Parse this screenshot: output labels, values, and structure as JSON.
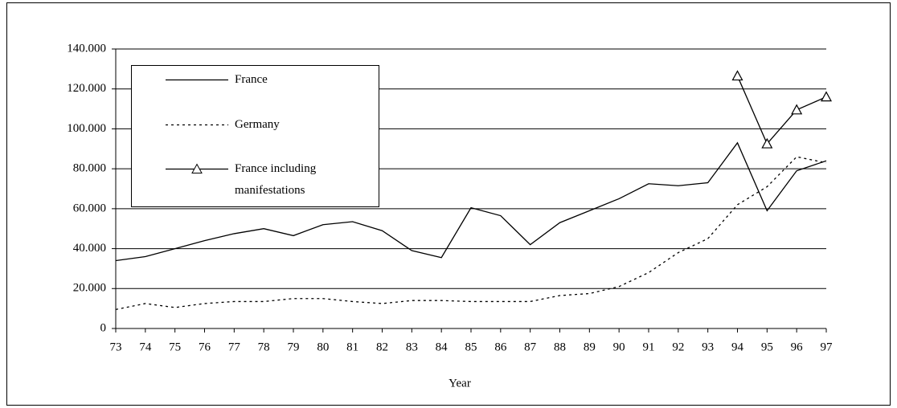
{
  "chart_data": {
    "type": "line",
    "x_label": "Year",
    "categories": [
      "73",
      "74",
      "75",
      "76",
      "77",
      "78",
      "79",
      "80",
      "81",
      "82",
      "83",
      "84",
      "85",
      "86",
      "87",
      "88",
      "89",
      "90",
      "91",
      "92",
      "93",
      "94",
      "95",
      "96",
      "97"
    ],
    "series": [
      {
        "name": "France",
        "color": "#000000",
        "style": "solid",
        "values": [
          34000,
          36000,
          40000,
          44000,
          47500,
          50000,
          46500,
          52000,
          53500,
          49000,
          39000,
          35500,
          60500,
          56500,
          42000,
          53000,
          59000,
          65000,
          72500,
          71500,
          73000,
          93000,
          59000,
          79000,
          84000
        ]
      },
      {
        "name": "Germany",
        "color": "#000000",
        "style": "dotted",
        "values": [
          9500,
          12500,
          10500,
          12500,
          13500,
          13500,
          15000,
          15000,
          13500,
          12500,
          14000,
          14000,
          13500,
          13500,
          13500,
          16500,
          17500,
          21000,
          28000,
          38000,
          45000,
          62000,
          71000,
          86000,
          83000
        ]
      },
      {
        "name": "France including manifestations",
        "color": "#000000",
        "style": "solid",
        "marker": "triangle",
        "values": [
          null,
          null,
          null,
          null,
          null,
          null,
          null,
          null,
          null,
          null,
          null,
          null,
          null,
          null,
          null,
          null,
          null,
          null,
          null,
          null,
          null,
          126500,
          92500,
          109500,
          116000
        ]
      }
    ],
    "ylim": [
      0,
      140000
    ],
    "yticks": [
      0,
      {
        "value": 20000,
        "label": "20.000"
      },
      {
        "value": 40000,
        "label": "40.000"
      },
      {
        "value": 60000,
        "label": "60.000"
      },
      {
        "value": 80000,
        "label": "80.000"
      },
      {
        "value": 100000,
        "label": "100.000"
      },
      {
        "value": 120000,
        "label": "120.000"
      },
      {
        "value": 140000,
        "label": "140.000"
      }
    ],
    "grid": true,
    "legend": "upper left"
  }
}
